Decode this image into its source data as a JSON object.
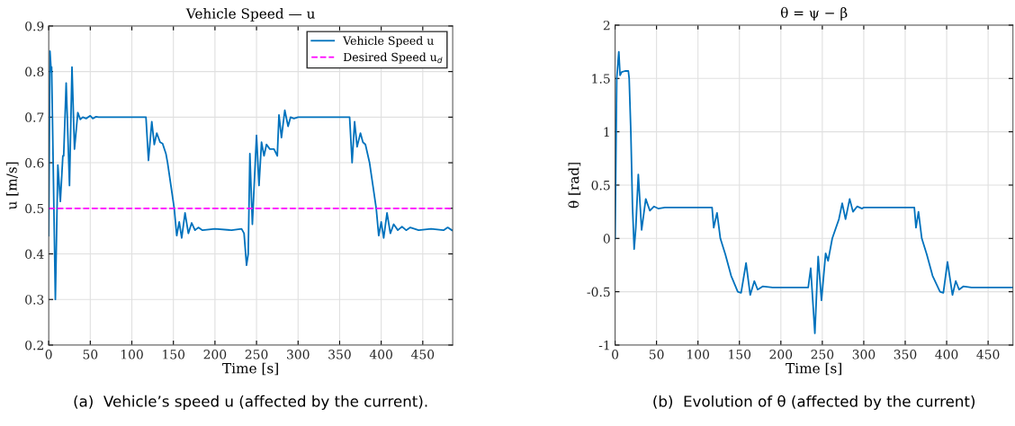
{
  "chart_data": [
    {
      "type": "line",
      "title": "Vehicle Speed — u",
      "xlabel": "Time [s]",
      "ylabel": "u [m/s]",
      "series": [
        {
          "name": "Vehicle Speed u",
          "color": "#0072bd",
          "x": [
            0,
            1.5,
            3,
            3.5,
            8,
            11,
            14,
            17,
            18,
            21,
            25,
            28,
            31,
            35,
            38,
            41,
            45,
            50,
            53,
            57,
            60,
            117,
            120,
            124,
            127,
            130,
            134,
            137,
            141,
            143,
            147,
            151,
            154,
            157,
            160,
            164,
            168,
            172,
            176,
            180,
            185,
            200,
            220,
            232,
            235,
            238,
            240,
            242,
            245,
            250,
            253,
            256,
            259,
            262,
            266,
            271,
            275,
            277,
            280,
            284,
            288,
            291,
            295,
            300,
            362,
            365,
            368,
            371,
            375,
            378,
            381,
            386,
            390,
            394,
            397,
            400,
            403,
            407,
            411,
            415,
            420,
            425,
            430,
            435,
            445,
            460,
            475,
            480,
            485
          ],
          "values": [
            0.44,
            0.845,
            0.8,
            0.81,
            0.3,
            0.595,
            0.515,
            0.615,
            0.615,
            0.775,
            0.55,
            0.81,
            0.63,
            0.71,
            0.695,
            0.7,
            0.697,
            0.703,
            0.697,
            0.701,
            0.7,
            0.7,
            0.605,
            0.69,
            0.64,
            0.665,
            0.645,
            0.642,
            0.62,
            0.6,
            0.55,
            0.5,
            0.44,
            0.47,
            0.435,
            0.49,
            0.445,
            0.468,
            0.452,
            0.458,
            0.452,
            0.455,
            0.452,
            0.455,
            0.445,
            0.375,
            0.4,
            0.62,
            0.465,
            0.66,
            0.55,
            0.645,
            0.615,
            0.64,
            0.63,
            0.63,
            0.615,
            0.705,
            0.655,
            0.715,
            0.68,
            0.7,
            0.697,
            0.7,
            0.7,
            0.6,
            0.69,
            0.635,
            0.665,
            0.645,
            0.64,
            0.6,
            0.55,
            0.5,
            0.44,
            0.47,
            0.435,
            0.49,
            0.445,
            0.465,
            0.452,
            0.46,
            0.452,
            0.458,
            0.452,
            0.455,
            0.452,
            0.458,
            0.452
          ]
        }
      ],
      "ref_lines": [
        {
          "axis": "y",
          "value": 0.5,
          "label": "Desired Speed u$_{d}$",
          "color": "#ff00ff",
          "line_style": "dashed"
        }
      ],
      "xlim": [
        0,
        486
      ],
      "ylim": [
        0.2,
        0.9
      ],
      "xticks": [
        0,
        50,
        100,
        150,
        200,
        250,
        300,
        350,
        400,
        450
      ],
      "yticks": [
        0.2,
        0.3,
        0.4,
        0.5,
        0.6,
        0.7,
        0.8,
        0.9
      ],
      "grid": true,
      "legend": "top right",
      "annotations": [
        "(a)  Vehicle’s speed u (affected by the current)."
      ]
    },
    {
      "type": "line",
      "title": "θ = ψ − β",
      "xlabel": "Time [s]",
      "ylabel": "θ [rad]",
      "series": [
        {
          "color": "#0072bd",
          "x": [
            0,
            2,
            4.5,
            6,
            8,
            12,
            16,
            17,
            19,
            21,
            23,
            25,
            28,
            32,
            37,
            42,
            47,
            52,
            60,
            117,
            119,
            123,
            127,
            133,
            140,
            148,
            152,
            158,
            163,
            168,
            172,
            178,
            190,
            233,
            236,
            241,
            245,
            249,
            254,
            257,
            262,
            270,
            274,
            278,
            283,
            287,
            292,
            298,
            300,
            361,
            363,
            366,
            370,
            376,
            383,
            392,
            396,
            401,
            407,
            411,
            415,
            420,
            430,
            480
          ],
          "values": [
            0,
            1.5,
            1.75,
            1.53,
            1.56,
            1.57,
            1.57,
            1.5,
            1.0,
            0.3,
            -0.1,
            0.1,
            0.6,
            0.08,
            0.37,
            0.26,
            0.3,
            0.28,
            0.29,
            0.29,
            0.1,
            0.24,
            0.0,
            -0.15,
            -0.35,
            -0.5,
            -0.51,
            -0.23,
            -0.53,
            -0.4,
            -0.48,
            -0.45,
            -0.46,
            -0.46,
            -0.28,
            -0.89,
            -0.17,
            -0.58,
            -0.14,
            -0.21,
            0.0,
            0.18,
            0.33,
            0.18,
            0.37,
            0.25,
            0.3,
            0.28,
            0.29,
            0.29,
            0.1,
            0.25,
            0.0,
            -0.15,
            -0.35,
            -0.5,
            -0.51,
            -0.22,
            -0.53,
            -0.4,
            -0.48,
            -0.45,
            -0.46,
            -0.46
          ]
        }
      ],
      "xlim": [
        0,
        480
      ],
      "ylim": [
        -1,
        2
      ],
      "xticks": [
        0,
        50,
        100,
        150,
        200,
        250,
        300,
        350,
        400,
        450
      ],
      "yticks": [
        -1,
        -0.5,
        0,
        0.5,
        1,
        1.5,
        2
      ],
      "grid": true,
      "annotations": [
        "(b)  Evolution of θ (affected by the current)"
      ]
    }
  ]
}
